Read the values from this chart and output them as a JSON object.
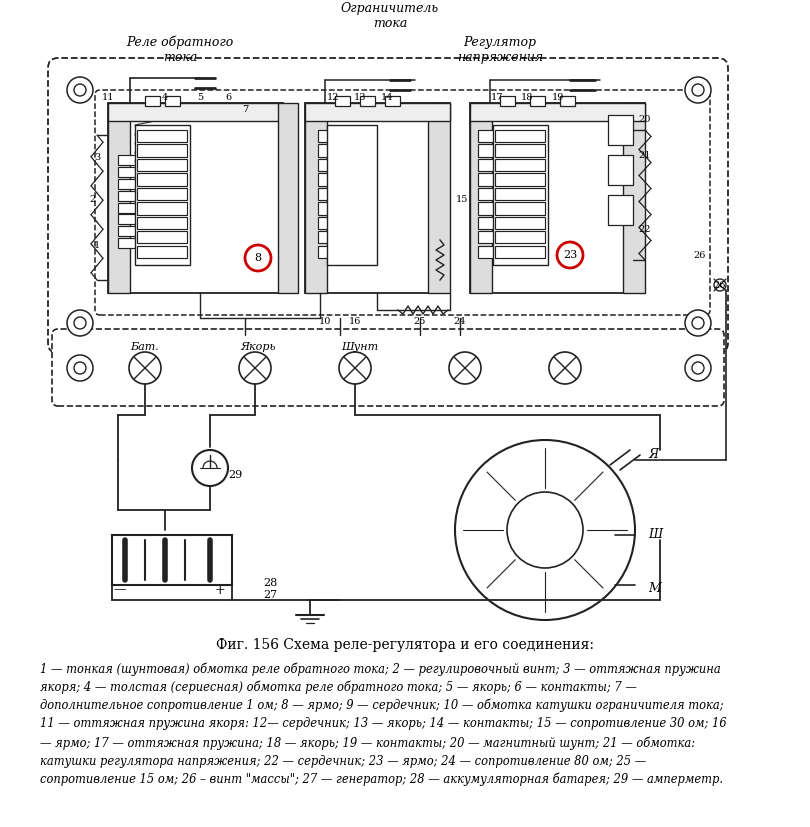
{
  "title": "Фиг. 156 Схема реле-регулятора и его соединения:",
  "label_ogranichitel": "Ограничитель\nтока",
  "label_rele": "Реле обратного\nтока",
  "label_regulator": "Регулятор\nнапряжения",
  "label_bat": "Бат.",
  "label_yakor": "Якорь",
  "label_shunt": "Шунт",
  "label_ya": "Я",
  "label_sh": "Ш",
  "label_m": "М",
  "label_29": "29",
  "label_28": "28",
  "label_27": "27",
  "bg_color": "#ffffff",
  "line_color": "#222222",
  "red_circle_color": "#cc0000",
  "caption_line1": "1 — тонкая (шунтовая) обмотка реле обратного тока; 2 — регулировочный винт; 3 — оттяжная пружина",
  "caption_line2": "якоря; 4 — толстая (сериесная) обмотка реле обратного тока; 5 — якорь; 6 — контакты; 7 —",
  "caption_line3": "дополнительное сопротивление 1 ом; 8 — ярмо; 9 — сердечник; 10 — обмотка катушки ограничителя тока;",
  "caption_line4": "11 — оттяжная пружина якоря: 12— сердечник; 13 — якорь; 14 — контакты; 15 — сопротивление 30 ом; 16",
  "caption_line5": "— ярмо; 17 — оттяжная пружина; 18 — якорь; 19 — контакты; 20 — магнитный шунт; 21 — обмотка:",
  "caption_line6": "катушки регулятора напряжения; 22 — сердечник; 23 — ярмо; 24 — сопротивление 80 ом; 25 —",
  "caption_line7": "сопротивление 15 ом; 26 – винт \"массы\"; 27 — генератор; 28 — аккумуляторная батарея; 29 — амперметр.",
  "fig_width": 8.1,
  "fig_height": 8.27,
  "dpi": 100
}
